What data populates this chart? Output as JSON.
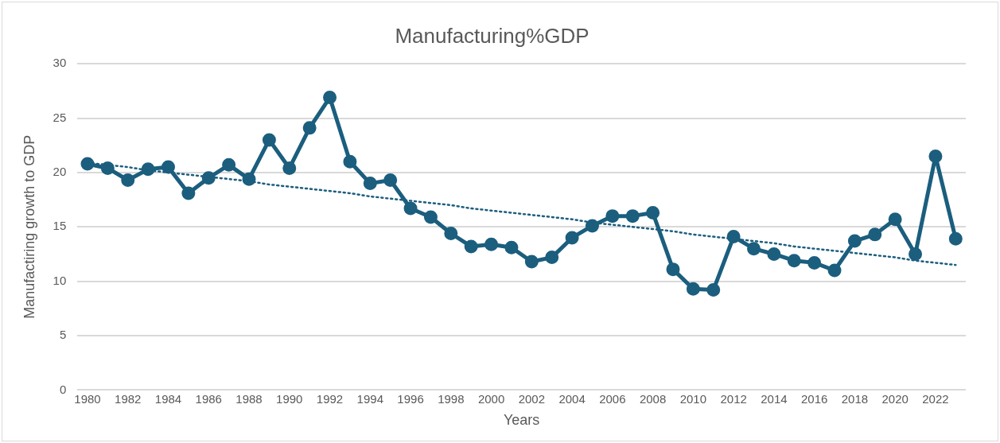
{
  "chart_data": {
    "type": "line",
    "title": "Manufacturing%GDP",
    "xlabel": "Years",
    "ylabel": "Manufactiring growth to GDP",
    "categories": [
      "1980",
      null,
      "1982",
      null,
      "1984",
      null,
      "1986",
      null,
      "1988",
      null,
      "1990",
      null,
      "1992",
      null,
      "1994",
      null,
      "1996",
      null,
      "1998",
      null,
      "2000",
      null,
      "2002",
      null,
      "2004",
      null,
      "2006",
      null,
      "2008",
      null,
      "2010",
      null,
      "2012",
      null,
      "2014",
      null,
      "2016",
      null,
      "2018",
      null,
      "2020",
      null,
      "2022",
      null
    ],
    "series": [
      {
        "type": "line",
        "color": "#1b5e7e",
        "marker": "circle",
        "line_style": "solid",
        "values": [
          20.8,
          20.4,
          19.3,
          20.3,
          20.5,
          18.1,
          19.5,
          20.7,
          19.4,
          23.0,
          20.4,
          24.1,
          26.9,
          21.0,
          19.0,
          19.3,
          16.7,
          15.9,
          14.4,
          13.2,
          13.4,
          13.1,
          11.8,
          12.2,
          14.0,
          15.1,
          16.0,
          16.0,
          16.3,
          11.1,
          9.3,
          9.2,
          14.1,
          13.0,
          12.5,
          11.9,
          11.7,
          11.0,
          13.7,
          14.3,
          15.7,
          12.5,
          21.5,
          13.9
        ]
      },
      {
        "type": "line",
        "color": "#1b5e7e",
        "marker": "none",
        "line_style": "dotted",
        "values": [
          20.9,
          20.7,
          20.5,
          20.2,
          20.0,
          19.8,
          19.6,
          19.4,
          19.2,
          18.9,
          18.7,
          18.5,
          18.3,
          18.1,
          17.8,
          17.6,
          17.4,
          17.2,
          17.0,
          16.7,
          16.5,
          16.3,
          16.1,
          15.9,
          15.7,
          15.4,
          15.2,
          15.0,
          14.8,
          14.6,
          14.3,
          14.1,
          13.9,
          13.7,
          13.5,
          13.2,
          13.0,
          12.8,
          12.6,
          12.4,
          12.2,
          11.9,
          11.7,
          11.5
        ]
      }
    ],
    "ylim": [
      0,
      30
    ],
    "yticks": [
      0,
      5,
      10,
      15,
      20,
      25,
      30
    ],
    "grid": "y",
    "legend": false
  }
}
